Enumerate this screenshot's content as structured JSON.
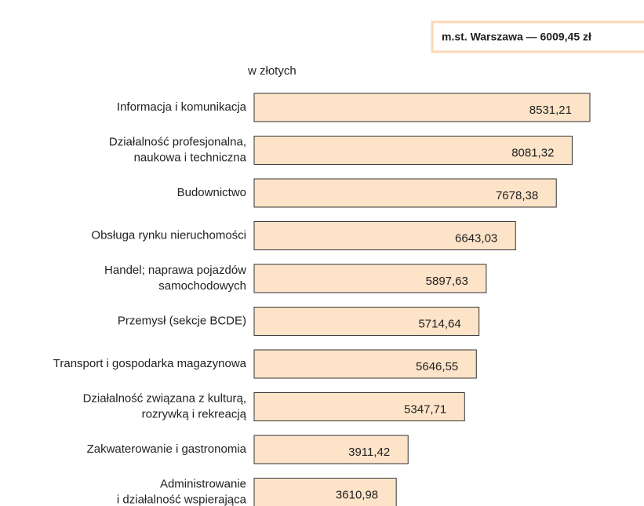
{
  "chart_data": {
    "type": "hbar",
    "annotation": "m.st. Warszawa — 6009,45 zł",
    "unit_label": "w złotych",
    "categories": [
      [
        "Informacja i komunikacja"
      ],
      [
        "Działalność profesjonalna,",
        "naukowa i techniczna"
      ],
      [
        "Budownictwo"
      ],
      [
        "Obsługa rynku nieruchomości"
      ],
      [
        "Handel; naprawa pojazdów",
        "samochodowych"
      ],
      [
        "Przemysł (sekcje BCDE)"
      ],
      [
        "Transport i gospodarka magazynowa"
      ],
      [
        "Działalność związana z kulturą,",
        "rozrywką i rekreacją"
      ],
      [
        "Zakwaterowanie i gastronomia"
      ],
      [
        "Administrowanie",
        "i działalność wspierająca"
      ]
    ],
    "values": [
      8531.21,
      8081.32,
      7678.38,
      6643.03,
      5897.63,
      5714.64,
      5646.55,
      5347.71,
      3911.42,
      3610.98
    ],
    "value_labels": [
      "8531,21",
      "8081,32",
      "7678,38",
      "6643,03",
      "5897,63",
      "5714,64",
      "5646,55",
      "5347,71",
      "3911,42",
      "3610,98"
    ],
    "color": "#fde3c8"
  }
}
